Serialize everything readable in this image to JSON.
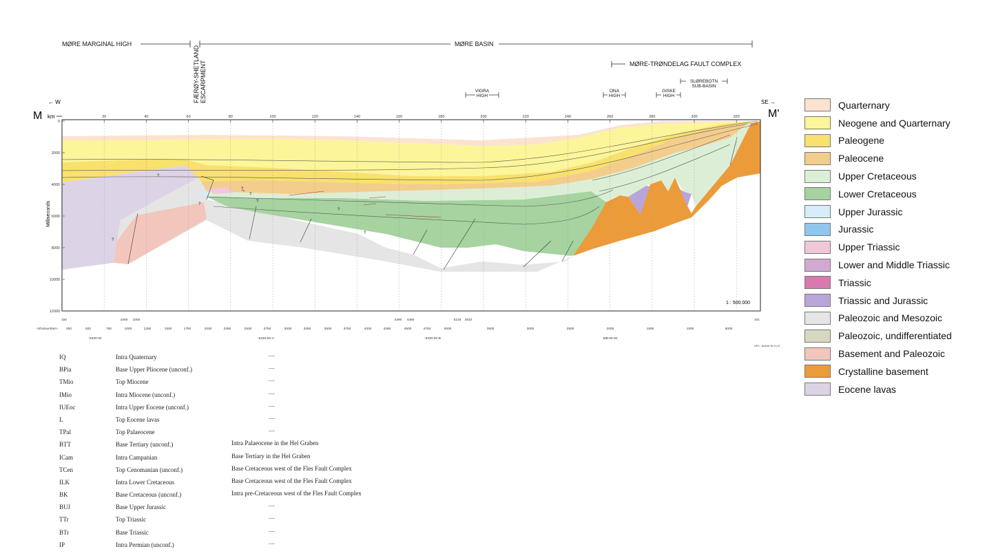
{
  "header": {
    "more_marginal_high": "MØRE MARGINAL HIGH",
    "more_basin": "MØRE BASIN",
    "faeroy_1": "FÆRØY-SHETLAND",
    "faeroy_2": "ESCARPMENT",
    "fault_complex": "MØRE-TRØNDELAG FAULT COMPLEX",
    "vigra_1": "VIGRA",
    "vigra_2": "HIGH",
    "ona_1": "ONA",
    "ona_2": "HIGH",
    "giske_1": "GISKE",
    "giske_2": "HIGH",
    "slorebotn_1": "SLØREBOTN",
    "slorebotn_2": "SUB-BASIN"
  },
  "section": {
    "label_left": "M",
    "label_right": "M'",
    "dir_left": "← W",
    "dir_right": "SE →",
    "km_label": "km",
    "km_ticks": [
      "20",
      "40",
      "60",
      "80",
      "100",
      "120",
      "140",
      "160",
      "180",
      "200",
      "220",
      "240",
      "260",
      "280",
      "300",
      "320"
    ],
    "y_axis_title": "Milliseconds",
    "y_ticks": [
      "0",
      "2000",
      "4000",
      "6000",
      "8000",
      "10000",
      "12000"
    ],
    "scale": "1 : 500.000",
    "credit": "NPD - Bulletin No 8 (19",
    "shot_label": "<shotnumber>",
    "shots_top": [
      "150",
      "1050",
      "1050",
      "4490",
      "4480",
      "5216",
      "3810",
      "101"
    ],
    "shots_main": [
      "250",
      "500",
      "750",
      "1000",
      "1250",
      "1500",
      "1750",
      "2000",
      "2250",
      "2500",
      "2750",
      "3000",
      "3250",
      "3500",
      "3750",
      "4000",
      "4250",
      "4500",
      "4750",
      "5000",
      "3500",
      "3000",
      "2500",
      "2000",
      "1500",
      "1000",
      "5000"
    ],
    "lines": [
      "-6330-92",
      "-6330-92-A",
      "-6330-92-B",
      "MB-06-92"
    ],
    "q": "?"
  },
  "legend": [
    {
      "label": "Quarternary",
      "color": "#FBE3D0"
    },
    {
      "label": "Neogene and Quarternary",
      "color": "#FCF59A"
    },
    {
      "label": "Paleogene",
      "color": "#F8E16C"
    },
    {
      "label": "Paleocene",
      "color": "#F3CD8C"
    },
    {
      "label": "Upper Cretaceous",
      "color": "#DCEFD6"
    },
    {
      "label": "Lower Cretaceous",
      "color": "#A6D3A0"
    },
    {
      "label": "Upper Jurassic",
      "color": "#D6ECF8"
    },
    {
      "label": "Jurassic",
      "color": "#8FC8EC"
    },
    {
      "label": "Upper Triassic",
      "color": "#F0C8DA"
    },
    {
      "label": "Lower and Middle Triassic",
      "color": "#D2A9D0"
    },
    {
      "label": "Triassic",
      "color": "#D97AAE"
    },
    {
      "label": "Triassic and Jurassic",
      "color": "#B9A6D8"
    },
    {
      "label": "Paleozoic and Mesozoic",
      "color": "#E5E5E5"
    },
    {
      "label": "Paleozoic, undifferentiated",
      "color": "#D8D8BE"
    },
    {
      "label": "Basement and Paleozoic",
      "color": "#F2C6BC"
    },
    {
      "label": "Crystalline basement",
      "color": "#EC9B3A"
    },
    {
      "label": "Eocene lavas",
      "color": "#DDD3E6"
    }
  ],
  "horizons": [
    {
      "code": "IQ",
      "name": "Intra Quaternary",
      "note": "",
      "dash": "—"
    },
    {
      "code": "BPia",
      "name": "Base Upper Pliocene (unconf.)",
      "note": "",
      "dash": "—"
    },
    {
      "code": "TMio",
      "name": "Top Miocene",
      "note": "",
      "dash": "—"
    },
    {
      "code": "IMio",
      "name": "Intra Miocene (unconf.)",
      "note": "",
      "dash": "—"
    },
    {
      "code": "IUEoc",
      "name": "Intra Upper Eocene (unconf.)",
      "note": "",
      "dash": "—"
    },
    {
      "code": "L",
      "name": "Top Eocene lavas",
      "note": "",
      "dash": "—"
    },
    {
      "code": "TPal",
      "name": "Top Palaeocene",
      "note": "",
      "dash": "—"
    },
    {
      "code": "BTT",
      "name": "Base Tertiary (unconf.)",
      "note": "Intra Palaeocene in the Hel Graben",
      "dash": ""
    },
    {
      "code": "ICam",
      "name": "Intra Campanian",
      "note": "Base Tertiary in the Hel Graben",
      "dash": ""
    },
    {
      "code": "TCen",
      "name": "Top Cenomanian (unconf.)",
      "note": "Base Cretaceous west of the Fles Fault Complex",
      "dash": ""
    },
    {
      "code": "ILK",
      "name": "Intra Lower Cretaceous",
      "note": "Base Cretaceous west of the Fles Fault Complex",
      "dash": ""
    },
    {
      "code": "BK",
      "name": "Base Cretaceous (unconf.)",
      "note": "Intra pre-Cretaceous west of the Fles Fault Complex",
      "dash": ""
    },
    {
      "code": "BUJ",
      "name": "Base Upper Jurassic",
      "note": "",
      "dash": "—"
    },
    {
      "code": "TTr",
      "name": "Top Triassic",
      "note": "",
      "dash": "—"
    },
    {
      "code": "BTr",
      "name": "Base Triassic",
      "note": "",
      "dash": "—"
    },
    {
      "code": "IP",
      "name": "Intra Permian (unconf.)",
      "note": "",
      "dash": "—"
    }
  ]
}
